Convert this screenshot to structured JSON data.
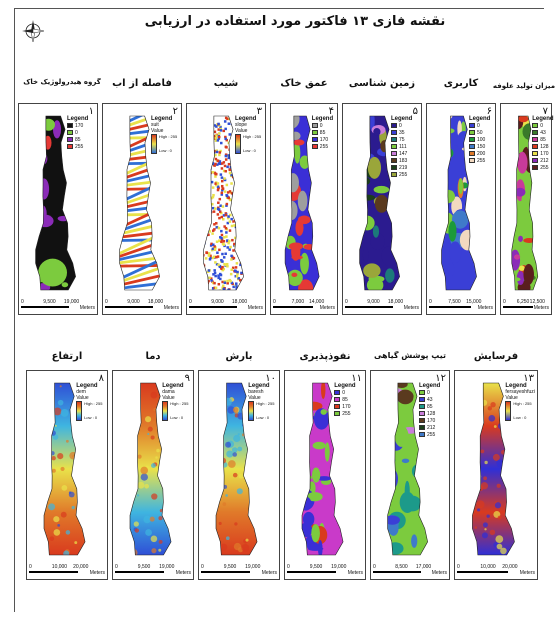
{
  "title": "نقشه فازی ۱۳ فاکتور مورد استفاده در ارزیابی",
  "compass": {
    "icon": "compass-icon"
  },
  "maps": [
    {
      "number": "۱",
      "title": "گروه هیدرولوژیک خاک",
      "legend_title": "Legend",
      "legend_type": "classes",
      "classes": [
        {
          "label": "170",
          "color": "#111111"
        },
        {
          "label": "0",
          "color": "#7CCB3E"
        },
        {
          "label": "85",
          "color": "#8B2BB8"
        },
        {
          "label": "255",
          "color": "#E53935"
        }
      ],
      "scale": [
        "0",
        "9,500",
        "19,000"
      ],
      "scale_unit": "Meters",
      "pattern": "black-mix"
    },
    {
      "number": "۲",
      "title": "فاصله از آب",
      "legend_title": "Legend",
      "legend_type": "ramp",
      "ramp_title": "suit",
      "ramp_sub": "Value",
      "ramp_high": "High : 255",
      "ramp_low": "Low : 0",
      "ramp_colors": [
        "#2F6FD6",
        "#E9E24A",
        "#D93A1E"
      ],
      "scale": [
        "0",
        "9,000",
        "18,000"
      ],
      "scale_unit": "Meters",
      "pattern": "stripes"
    },
    {
      "number": "۳",
      "title": "شیب",
      "legend_title": "Legend",
      "legend_type": "ramp",
      "ramp_title": "slope",
      "ramp_sub": "Value",
      "ramp_high": "High : 255",
      "ramp_low": "Low : 0",
      "ramp_colors": [
        "#2F4FD6",
        "#E9E24A",
        "#D93A1E"
      ],
      "scale": [
        "0",
        "9,000",
        "18,000"
      ],
      "scale_unit": "Meters",
      "pattern": "noise"
    },
    {
      "number": "۴",
      "title": "عمق خاک",
      "legend_title": "Legend",
      "legend_type": "classes",
      "classes": [
        {
          "label": "0",
          "color": "#9E9E9E"
        },
        {
          "label": "85",
          "color": "#7CCB3E"
        },
        {
          "label": "170",
          "color": "#3A2FD6"
        },
        {
          "label": "255",
          "color": "#E53935"
        }
      ],
      "scale": [
        "0",
        "7,000",
        "14,000"
      ],
      "scale_unit": "Meters",
      "pattern": "blue-green"
    },
    {
      "number": "۵",
      "title": "زمین شناسی",
      "legend_title": "Legend",
      "legend_type": "classes",
      "classes": [
        {
          "label": "0",
          "color": "#2B1B8F"
        },
        {
          "label": "35",
          "color": "#3A3FD6"
        },
        {
          "label": "75",
          "color": "#1C7A7A"
        },
        {
          "label": "111",
          "color": "#7CCB3E"
        },
        {
          "label": "147",
          "color": "#C97DD9"
        },
        {
          "label": "183",
          "color": "#5A3A1E"
        },
        {
          "label": "219",
          "color": "#1B3F1B"
        },
        {
          "label": "255",
          "color": "#9AA63A"
        }
      ],
      "scale": [
        "0",
        "9,000",
        "18,000"
      ],
      "scale_unit": "Meters",
      "pattern": "geology"
    },
    {
      "number": "۶",
      "title": "کاربری",
      "legend_title": "Legend",
      "legend_type": "classes",
      "classes": [
        {
          "label": "0",
          "color": "#3A3FD6"
        },
        {
          "label": "50",
          "color": "#7CCB3E"
        },
        {
          "label": "100",
          "color": "#1C9A3A"
        },
        {
          "label": "150",
          "color": "#3F7AC9"
        },
        {
          "label": "200",
          "color": "#E07A2A"
        },
        {
          "label": "255",
          "color": "#F2D9C0"
        }
      ],
      "scale": [
        "0",
        "7,500",
        "15,000"
      ],
      "scale_unit": "Meters",
      "pattern": "landuse"
    },
    {
      "number": "۷",
      "title": "میزان تولید علوفه",
      "legend_title": "Legend",
      "legend_type": "classes",
      "classes": [
        {
          "label": "0",
          "color": "#7CCB3E"
        },
        {
          "label": "43",
          "color": "#3A7A2A"
        },
        {
          "label": "85",
          "color": "#C93A9A"
        },
        {
          "label": "128",
          "color": "#D93A1E"
        },
        {
          "label": "170",
          "color": "#E9E24A"
        },
        {
          "label": "212",
          "color": "#8B2BB8"
        },
        {
          "label": "255",
          "color": "#5A1E1E"
        }
      ],
      "scale": [
        "0",
        "6,250",
        "12,500"
      ],
      "scale_unit": "Meters",
      "pattern": "forage"
    },
    {
      "number": "۸",
      "title": "ارتفاع",
      "legend_title": "Legend",
      "legend_type": "ramp",
      "ramp_title": "dem",
      "ramp_sub": "Value",
      "ramp_high": "High : 255",
      "ramp_low": "Low : 0",
      "ramp_colors": [
        "#2F4FD6",
        "#3FB5E0",
        "#E9E24A",
        "#E07A2A",
        "#D93A1E"
      ],
      "scale": [
        "0",
        "10,000",
        "20,000"
      ],
      "scale_unit": "Meters",
      "pattern": "dem"
    },
    {
      "number": "۹",
      "title": "دما",
      "legend_title": "Legend",
      "legend_type": "ramp",
      "ramp_title": "dama",
      "ramp_sub": "Value",
      "ramp_high": "High : 255",
      "ramp_low": "Low : 0",
      "ramp_colors": [
        "#2F4FD6",
        "#3FB5E0",
        "#E9E24A",
        "#E07A2A",
        "#D93A1E"
      ],
      "scale": [
        "0",
        "9,500",
        "19,000"
      ],
      "scale_unit": "Meters",
      "pattern": "temp"
    },
    {
      "number": "۱۰",
      "title": "بارش",
      "legend_title": "Legend",
      "legend_type": "ramp",
      "ramp_title": "baresh",
      "ramp_sub": "Value",
      "ramp_high": "High : 255",
      "ramp_low": "Low : 0",
      "ramp_colors": [
        "#2F4FD6",
        "#3FB5E0",
        "#E9E24A",
        "#E07A2A",
        "#D93A1E"
      ],
      "scale": [
        "0",
        "9,500",
        "19,000"
      ],
      "scale_unit": "Meters",
      "pattern": "rain"
    },
    {
      "number": "۱۱",
      "title": "نفوذپذیری",
      "legend_title": "Legend",
      "legend_type": "classes",
      "classes": [
        {
          "label": "0",
          "color": "#3A2FD6"
        },
        {
          "label": "85",
          "color": "#C93AC9"
        },
        {
          "label": "170",
          "color": "#D93A1E"
        },
        {
          "label": "255",
          "color": "#7CCB3E"
        }
      ],
      "scale": [
        "0",
        "9,500",
        "19,000"
      ],
      "scale_unit": "Meters",
      "pattern": "perm"
    },
    {
      "number": "۱۲",
      "title": "تیپ پوشش گیاهی",
      "legend_title": "Legend",
      "legend_type": "classes",
      "classes": [
        {
          "label": "0",
          "color": "#7CCB3E"
        },
        {
          "label": "43",
          "color": "#3A3FD6"
        },
        {
          "label": "85",
          "color": "#1C9A8A"
        },
        {
          "label": "128",
          "color": "#C97DD9"
        },
        {
          "label": "170",
          "color": "#5A3A1E"
        },
        {
          "label": "212",
          "color": "#1B3F1B"
        },
        {
          "label": "255",
          "color": "#3F7AC9"
        }
      ],
      "scale": [
        "0",
        "8,500",
        "17,000"
      ],
      "scale_unit": "Meters",
      "pattern": "veg"
    },
    {
      "number": "۱۳",
      "title": "فرسایش",
      "legend_title": "Legend",
      "legend_type": "ramp",
      "ramp_title": "fersayeshfuzi",
      "ramp_sub": "Value",
      "ramp_high": "High : 255",
      "ramp_low": "Low : 0",
      "ramp_colors": [
        "#2F2FD6",
        "#E9E24A",
        "#D93A1E"
      ],
      "scale": [
        "0",
        "10,000",
        "20,000"
      ],
      "scale_unit": "Meters",
      "pattern": "erosion"
    }
  ]
}
